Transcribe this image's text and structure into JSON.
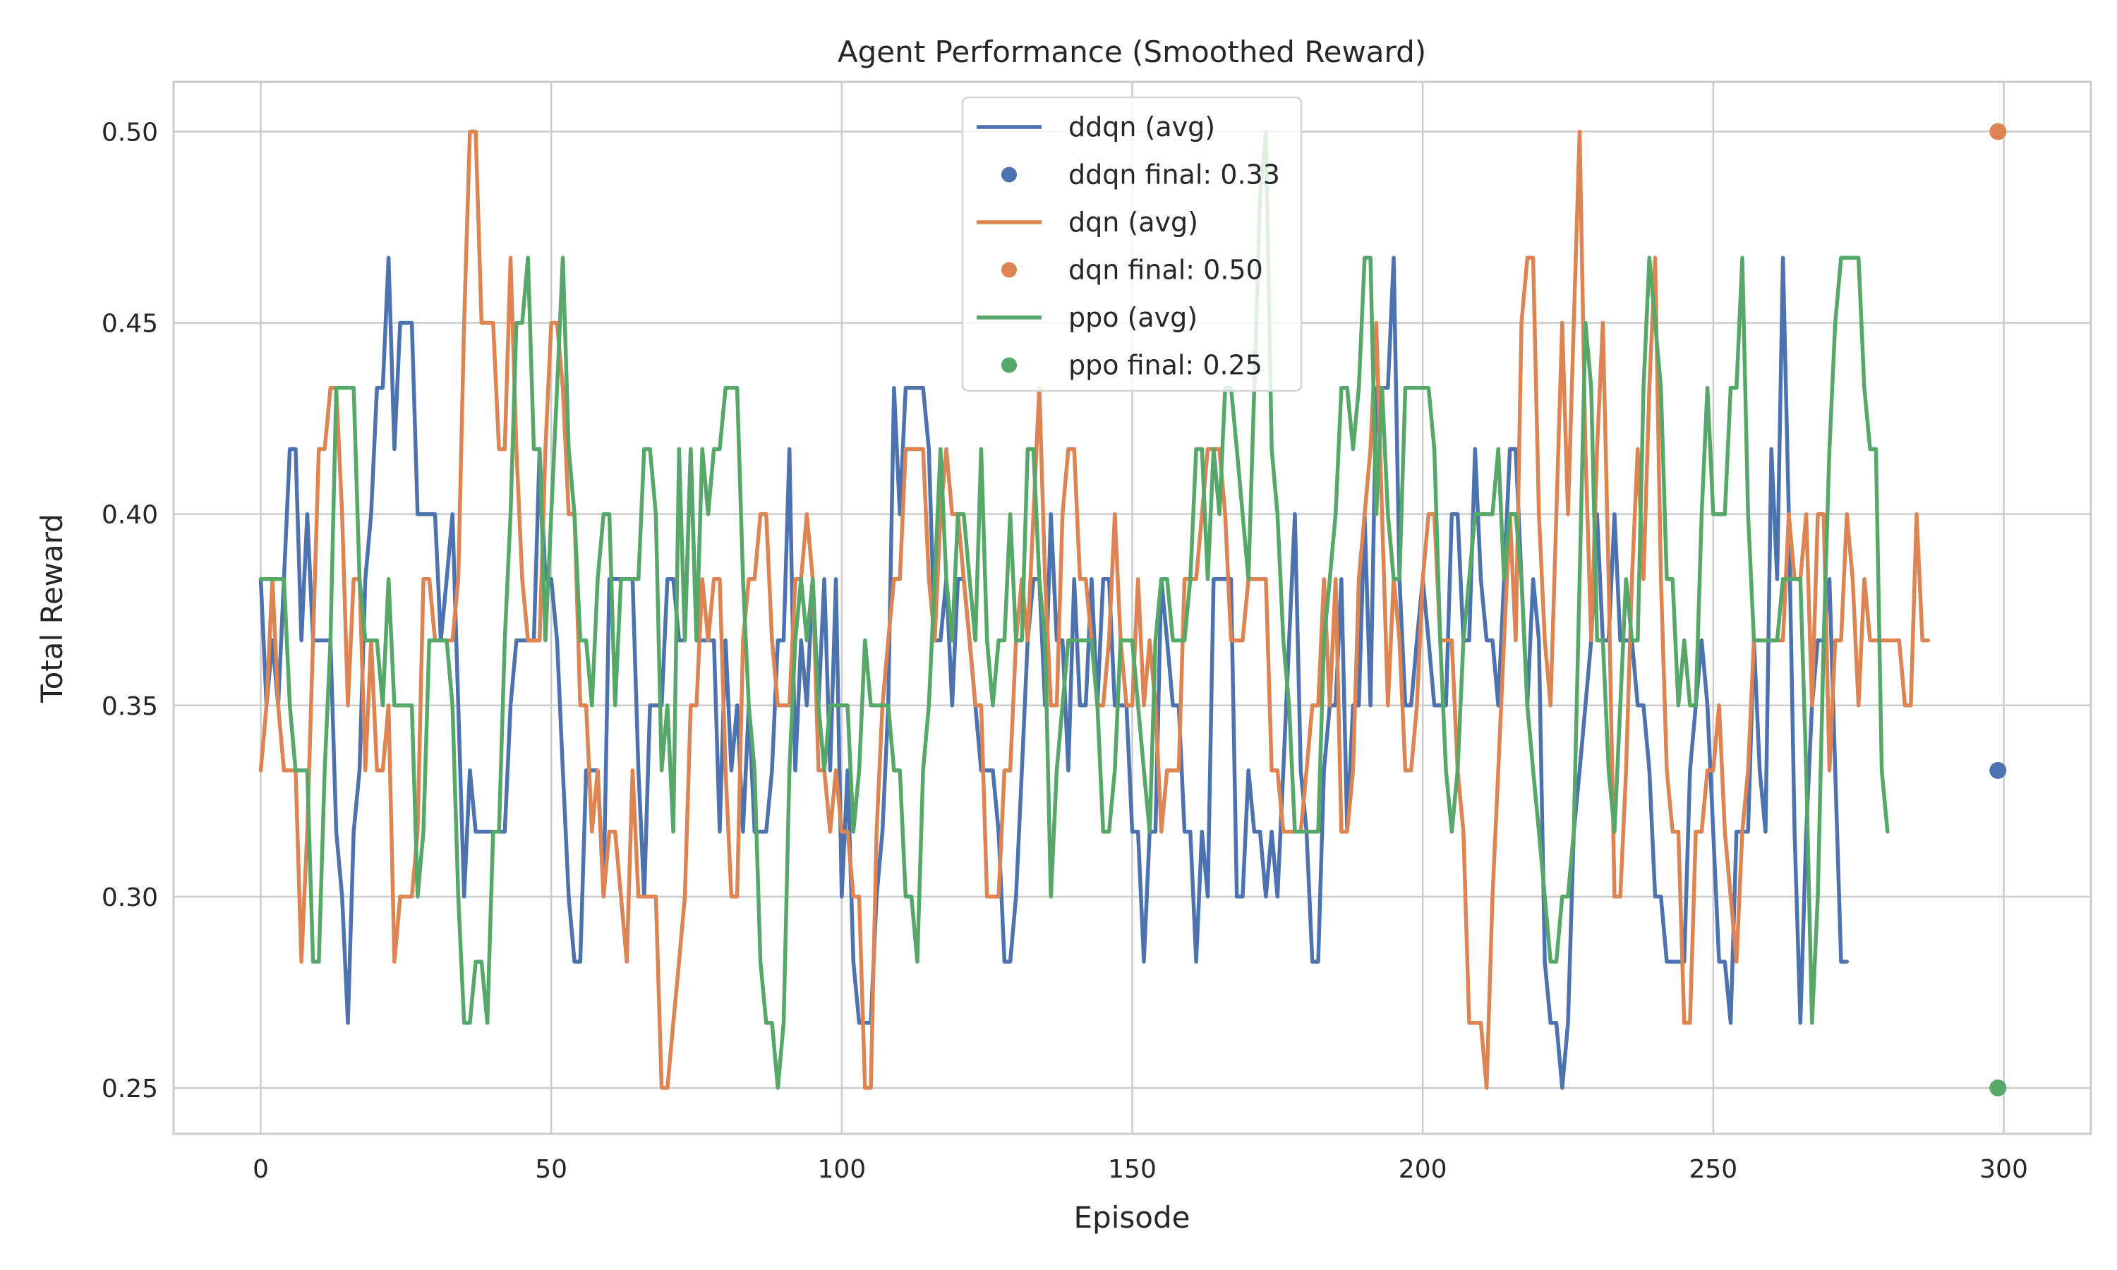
{
  "chart_data": {
    "type": "line",
    "title": "Agent Performance (Smoothed Reward)",
    "xlabel": "Episode",
    "ylabel": "Total Reward",
    "xlim": [
      -15,
      315
    ],
    "ylim": [
      0.238,
      0.513
    ],
    "xticks": [
      0,
      50,
      100,
      150,
      200,
      250,
      300
    ],
    "xtick_labels": [
      "0",
      "50",
      "100",
      "150",
      "200",
      "250",
      "300"
    ],
    "yticks": [
      0.25,
      0.3,
      0.35,
      0.4,
      0.45,
      0.5
    ],
    "ytick_labels": [
      "0.25",
      "0.30",
      "0.35",
      "0.40",
      "0.45",
      "0.50"
    ],
    "grid": true,
    "legend_position": "top-center",
    "series": [
      {
        "name": "ddqn (avg)",
        "color": "#4c72b0",
        "x_start": 0,
        "values": [
          0.383,
          0.35,
          0.367,
          0.35,
          0.383,
          0.417,
          0.417,
          0.367,
          0.4,
          0.367,
          0.367,
          0.367,
          0.367,
          0.317,
          0.3,
          0.267,
          0.317,
          0.333,
          0.383,
          0.4,
          0.433,
          0.433,
          0.467,
          0.417,
          0.45,
          0.45,
          0.45,
          0.4,
          0.4,
          0.4,
          0.4,
          0.367,
          0.383,
          0.4,
          0.35,
          0.3,
          0.333,
          0.317,
          0.317,
          0.317,
          0.317,
          0.317,
          0.317,
          0.35,
          0.367,
          0.367,
          0.367,
          0.367,
          0.417,
          0.383,
          0.383,
          0.367,
          0.333,
          0.3,
          0.283,
          0.283,
          0.333,
          0.333,
          0.333,
          0.3,
          0.383,
          0.383,
          0.383,
          0.383,
          0.383,
          0.333,
          0.3,
          0.35,
          0.35,
          0.35,
          0.383,
          0.383,
          0.367,
          0.367,
          0.417,
          0.367,
          0.367,
          0.367,
          0.367,
          0.317,
          0.367,
          0.333,
          0.35,
          0.317,
          0.35,
          0.317,
          0.317,
          0.317,
          0.333,
          0.367,
          0.367,
          0.417,
          0.333,
          0.367,
          0.35,
          0.383,
          0.35,
          0.383,
          0.333,
          0.383,
          0.3,
          0.333,
          0.283,
          0.267,
          0.267,
          0.267,
          0.3,
          0.317,
          0.35,
          0.433,
          0.4,
          0.433,
          0.433,
          0.433,
          0.433,
          0.417,
          0.367,
          0.367,
          0.383,
          0.35,
          0.383,
          0.383,
          0.367,
          0.35,
          0.333,
          0.333,
          0.333,
          0.317,
          0.283,
          0.283,
          0.3,
          0.333,
          0.367,
          0.383,
          0.383,
          0.35,
          0.4,
          0.367,
          0.367,
          0.333,
          0.383,
          0.35,
          0.35,
          0.383,
          0.35,
          0.383,
          0.383,
          0.35,
          0.35,
          0.35,
          0.317,
          0.317,
          0.283,
          0.317,
          0.317,
          0.383,
          0.367,
          0.35,
          0.35,
          0.317,
          0.317,
          0.283,
          0.317,
          0.3,
          0.383,
          0.383,
          0.383,
          0.383,
          0.3,
          0.3,
          0.333,
          0.317,
          0.317,
          0.3,
          0.317,
          0.3,
          0.333,
          0.367,
          0.4,
          0.333,
          0.317,
          0.283,
          0.283,
          0.333,
          0.35,
          0.35,
          0.383,
          0.317,
          0.35,
          0.35,
          0.4,
          0.35,
          0.433,
          0.433,
          0.433,
          0.467,
          0.383,
          0.35,
          0.35,
          0.367,
          0.383,
          0.367,
          0.35,
          0.35,
          0.35,
          0.4,
          0.4,
          0.367,
          0.367,
          0.417,
          0.383,
          0.367,
          0.367,
          0.35,
          0.383,
          0.417,
          0.417,
          0.383,
          0.35,
          0.383,
          0.367,
          0.283,
          0.267,
          0.267,
          0.25,
          0.267,
          0.317,
          0.333,
          0.35,
          0.367,
          0.4,
          0.367,
          0.367,
          0.4,
          0.367,
          0.367,
          0.367,
          0.35,
          0.35,
          0.333,
          0.3,
          0.3,
          0.283,
          0.283,
          0.283,
          0.283,
          0.333,
          0.35,
          0.367,
          0.35,
          0.317,
          0.283,
          0.283,
          0.267,
          0.317,
          0.317,
          0.317,
          0.367,
          0.333,
          0.317,
          0.417,
          0.383,
          0.467,
          0.4,
          0.317,
          0.267,
          0.317,
          0.35,
          0.367,
          0.367,
          0.383,
          0.333,
          0.283,
          0.283
        ],
        "final_label": "ddqn final: 0.33",
        "final_x": 299,
        "final_y": 0.333
      },
      {
        "name": "dqn (avg)",
        "color": "#dd8452",
        "x_start": 0,
        "values": [
          0.333,
          0.35,
          0.383,
          0.35,
          0.333,
          0.333,
          0.333,
          0.283,
          0.317,
          0.367,
          0.417,
          0.417,
          0.433,
          0.433,
          0.4,
          0.35,
          0.383,
          0.383,
          0.333,
          0.367,
          0.333,
          0.333,
          0.35,
          0.283,
          0.3,
          0.3,
          0.3,
          0.317,
          0.383,
          0.383,
          0.367,
          0.367,
          0.367,
          0.367,
          0.383,
          0.45,
          0.5,
          0.5,
          0.45,
          0.45,
          0.45,
          0.417,
          0.417,
          0.467,
          0.417,
          0.383,
          0.367,
          0.367,
          0.367,
          0.417,
          0.45,
          0.45,
          0.433,
          0.4,
          0.4,
          0.35,
          0.35,
          0.317,
          0.333,
          0.3,
          0.317,
          0.317,
          0.3,
          0.283,
          0.333,
          0.3,
          0.3,
          0.3,
          0.3,
          0.25,
          0.25,
          0.267,
          0.283,
          0.3,
          0.35,
          0.35,
          0.383,
          0.367,
          0.383,
          0.383,
          0.333,
          0.3,
          0.3,
          0.367,
          0.383,
          0.383,
          0.4,
          0.4,
          0.367,
          0.35,
          0.35,
          0.35,
          0.383,
          0.383,
          0.4,
          0.383,
          0.333,
          0.333,
          0.317,
          0.333,
          0.317,
          0.317,
          0.3,
          0.3,
          0.25,
          0.25,
          0.317,
          0.35,
          0.367,
          0.383,
          0.383,
          0.417,
          0.417,
          0.417,
          0.417,
          0.383,
          0.367,
          0.4,
          0.417,
          0.4,
          0.4,
          0.383,
          0.367,
          0.35,
          0.35,
          0.3,
          0.3,
          0.3,
          0.333,
          0.333,
          0.367,
          0.383,
          0.367,
          0.4,
          0.433,
          0.383,
          0.35,
          0.35,
          0.4,
          0.417,
          0.417,
          0.383,
          0.383,
          0.367,
          0.35,
          0.35,
          0.367,
          0.4,
          0.367,
          0.35,
          0.35,
          0.383,
          0.35,
          0.367,
          0.35,
          0.317,
          0.333,
          0.333,
          0.333,
          0.383,
          0.383,
          0.383,
          0.4,
          0.417,
          0.417,
          0.417,
          0.4,
          0.367,
          0.367,
          0.367,
          0.383,
          0.383,
          0.383,
          0.383,
          0.333,
          0.333,
          0.317,
          0.317,
          0.317,
          0.317,
          0.333,
          0.35,
          0.35,
          0.383,
          0.35,
          0.383,
          0.317,
          0.317,
          0.333,
          0.383,
          0.4,
          0.417,
          0.45,
          0.4,
          0.35,
          0.383,
          0.367,
          0.333,
          0.333,
          0.35,
          0.383,
          0.4,
          0.4,
          0.367,
          0.367,
          0.367,
          0.333,
          0.317,
          0.267,
          0.267,
          0.267,
          0.25,
          0.3,
          0.333,
          0.367,
          0.4,
          0.367,
          0.45,
          0.467,
          0.467,
          0.4,
          0.367,
          0.35,
          0.4,
          0.45,
          0.4,
          0.45,
          0.5,
          0.417,
          0.367,
          0.417,
          0.45,
          0.383,
          0.3,
          0.3,
          0.333,
          0.383,
          0.417,
          0.383,
          0.433,
          0.467,
          0.383,
          0.333,
          0.317,
          0.317,
          0.267,
          0.267,
          0.317,
          0.317,
          0.333,
          0.333,
          0.35,
          0.317,
          0.3,
          0.283,
          0.317,
          0.333,
          0.367,
          0.367,
          0.367,
          0.367,
          0.367,
          0.367,
          0.4,
          0.383,
          0.383,
          0.4,
          0.35,
          0.4,
          0.4,
          0.333,
          0.367,
          0.367,
          0.4,
          0.383,
          0.35,
          0.383,
          0.367,
          0.367,
          0.367,
          0.367,
          0.367,
          0.367,
          0.35,
          0.35,
          0.4,
          0.367,
          0.367
        ],
        "final_label": "dqn final: 0.50",
        "final_x": 299,
        "final_y": 0.5
      },
      {
        "name": "ppo (avg)",
        "color": "#55a868",
        "x_start": 0,
        "values": [
          0.383,
          0.383,
          0.383,
          0.383,
          0.383,
          0.35,
          0.333,
          0.333,
          0.333,
          0.283,
          0.283,
          0.333,
          0.367,
          0.433,
          0.433,
          0.433,
          0.433,
          0.383,
          0.367,
          0.367,
          0.367,
          0.35,
          0.383,
          0.35,
          0.35,
          0.35,
          0.35,
          0.3,
          0.317,
          0.367,
          0.367,
          0.367,
          0.367,
          0.35,
          0.3,
          0.267,
          0.267,
          0.283,
          0.283,
          0.267,
          0.317,
          0.317,
          0.367,
          0.4,
          0.45,
          0.45,
          0.467,
          0.417,
          0.417,
          0.367,
          0.4,
          0.433,
          0.467,
          0.417,
          0.4,
          0.367,
          0.367,
          0.35,
          0.383,
          0.4,
          0.4,
          0.35,
          0.383,
          0.383,
          0.383,
          0.383,
          0.417,
          0.417,
          0.4,
          0.333,
          0.35,
          0.317,
          0.417,
          0.367,
          0.417,
          0.367,
          0.417,
          0.4,
          0.417,
          0.417,
          0.433,
          0.433,
          0.433,
          0.383,
          0.35,
          0.333,
          0.283,
          0.267,
          0.267,
          0.25,
          0.267,
          0.333,
          0.367,
          0.383,
          0.367,
          0.383,
          0.35,
          0.333,
          0.35,
          0.35,
          0.35,
          0.35,
          0.317,
          0.333,
          0.367,
          0.35,
          0.35,
          0.35,
          0.35,
          0.333,
          0.333,
          0.3,
          0.3,
          0.283,
          0.333,
          0.35,
          0.383,
          0.417,
          0.383,
          0.367,
          0.4,
          0.4,
          0.383,
          0.367,
          0.417,
          0.367,
          0.35,
          0.367,
          0.367,
          0.4,
          0.367,
          0.367,
          0.417,
          0.417,
          0.383,
          0.367,
          0.3,
          0.333,
          0.35,
          0.367,
          0.367,
          0.367,
          0.367,
          0.367,
          0.35,
          0.317,
          0.317,
          0.333,
          0.367,
          0.367,
          0.367,
          0.35,
          0.333,
          0.317,
          0.367,
          0.383,
          0.383,
          0.367,
          0.367,
          0.367,
          0.383,
          0.417,
          0.417,
          0.383,
          0.417,
          0.4,
          0.433,
          0.433,
          0.417,
          0.4,
          0.383,
          0.433,
          0.483,
          0.5,
          0.417,
          0.4,
          0.367,
          0.35,
          0.317,
          0.317,
          0.317,
          0.317,
          0.317,
          0.367,
          0.383,
          0.4,
          0.433,
          0.433,
          0.417,
          0.433,
          0.467,
          0.467,
          0.4,
          0.433,
          0.4,
          0.383,
          0.383,
          0.433,
          0.433,
          0.433,
          0.433,
          0.433,
          0.417,
          0.367,
          0.333,
          0.317,
          0.333,
          0.367,
          0.383,
          0.4,
          0.4,
          0.4,
          0.4,
          0.417,
          0.383,
          0.4,
          0.4,
          0.383,
          0.35,
          0.333,
          0.317,
          0.3,
          0.283,
          0.283,
          0.3,
          0.3,
          0.317,
          0.383,
          0.45,
          0.433,
          0.367,
          0.367,
          0.333,
          0.317,
          0.35,
          0.383,
          0.367,
          0.367,
          0.433,
          0.467,
          0.45,
          0.433,
          0.383,
          0.383,
          0.35,
          0.367,
          0.35,
          0.35,
          0.4,
          0.433,
          0.4,
          0.4,
          0.4,
          0.433,
          0.433,
          0.467,
          0.4,
          0.367,
          0.367,
          0.367,
          0.367,
          0.367,
          0.383,
          0.383,
          0.383,
          0.383,
          0.333,
          0.267,
          0.3,
          0.367,
          0.417,
          0.45,
          0.467,
          0.467,
          0.467,
          0.467,
          0.433,
          0.417,
          0.417,
          0.333,
          0.317
        ],
        "final_label": "ppo final: 0.25",
        "final_x": 299,
        "final_y": 0.25
      }
    ]
  }
}
